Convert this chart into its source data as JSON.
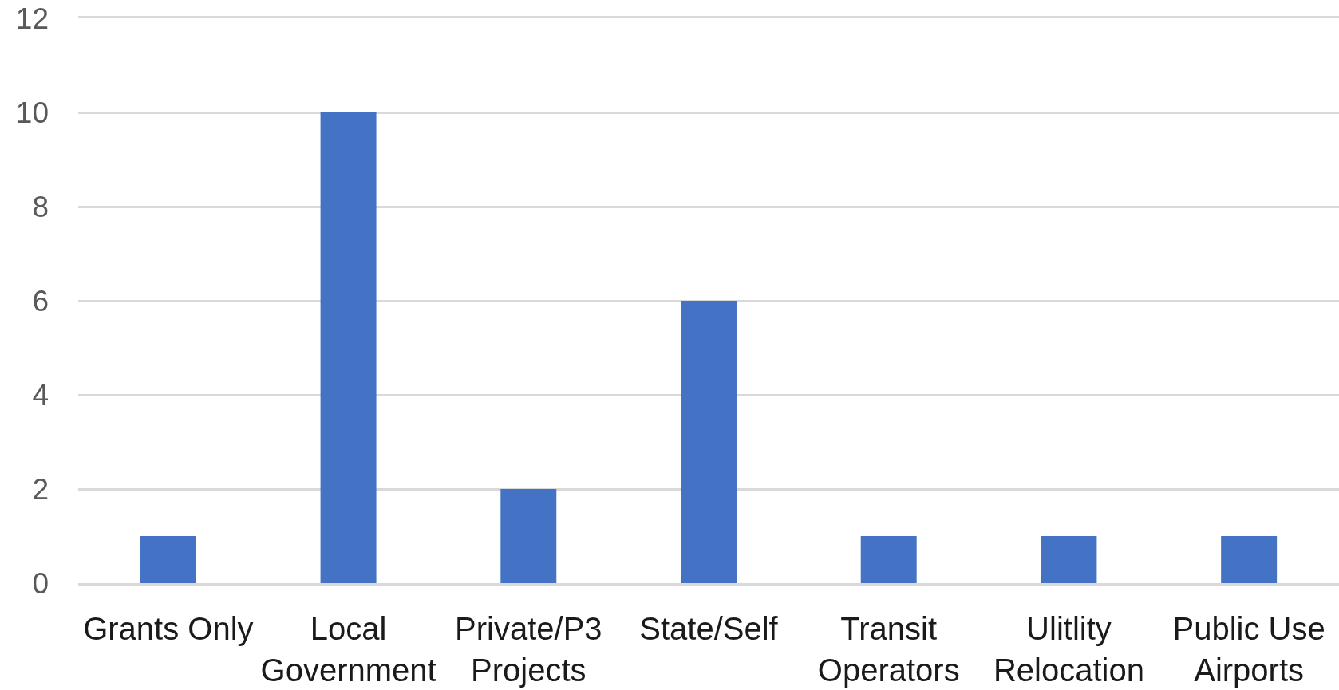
{
  "chart_data": {
    "type": "bar",
    "categories": [
      "Grants Only",
      "Local Government",
      "Private/P3 Projects",
      "State/Self",
      "Transit Operators",
      "Ulitlity Relocation",
      "Public Use Airports"
    ],
    "values": [
      1,
      10,
      2,
      6,
      1,
      1,
      1
    ],
    "color": "#4472c4",
    "ylim": [
      0,
      12
    ],
    "yticks": [
      0,
      2,
      4,
      6,
      8,
      10,
      12
    ],
    "grid": "y"
  }
}
